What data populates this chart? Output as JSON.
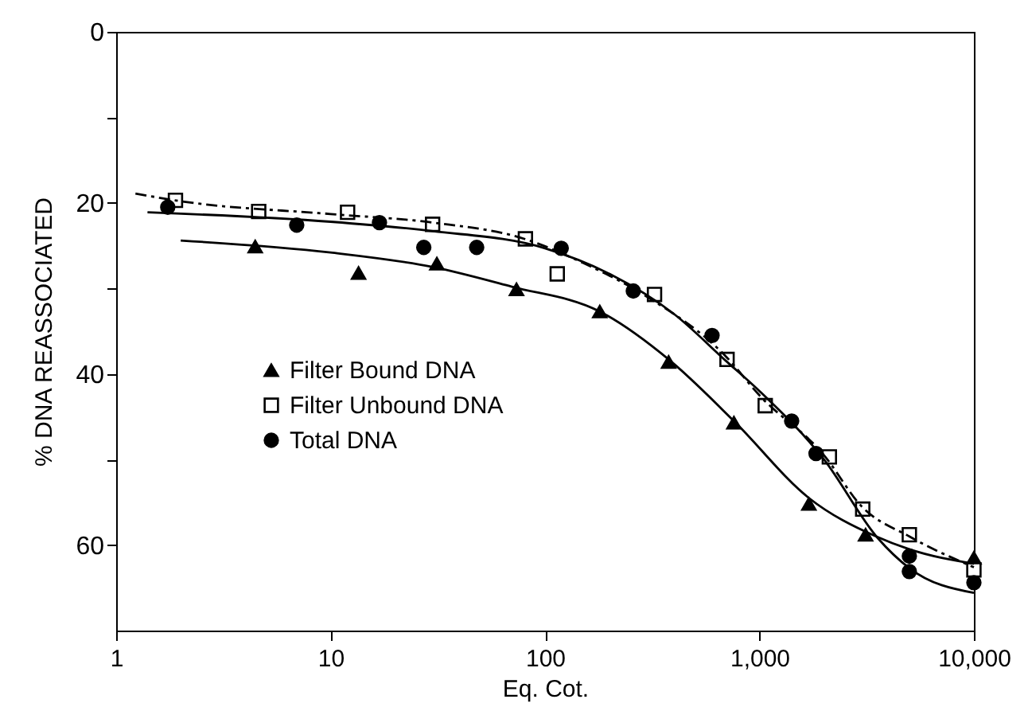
{
  "chart_data": {
    "type": "scatter",
    "xlabel": "Eq. Cot.",
    "ylabel": "% DNA REASSOCIATED",
    "log": "x",
    "grid": false,
    "legend": "left",
    "xlim": [
      1,
      10000
    ],
    "xticks": [
      1,
      10,
      100,
      {
        "value": 1000,
        "label": "1,000"
      },
      {
        "value": 10000,
        "label": "10,000"
      }
    ],
    "ylim": [
      70,
      0
    ],
    "yticks": [
      0,
      {
        "value": 10,
        "label": null
      },
      20,
      {
        "value": 30,
        "label": null
      },
      40,
      {
        "value": 50,
        "label": null
      },
      60
    ],
    "series": [
      {
        "name": "Filter Bound DNA",
        "marker": "triangle",
        "color": "#000000",
        "x": [
          4.45,
          13.5,
          31.3,
          73.6,
          180,
          377,
          760,
          1700,
          3125,
          10000
        ],
        "values": [
          25.1,
          28.2,
          27.1,
          30.1,
          32.7,
          38.6,
          45.7,
          55.2,
          58.8,
          61.5
        ]
      },
      {
        "name": "Filter Unbound DNA",
        "marker": "square",
        "color": "#000000",
        "x": [
          1.89,
          4.62,
          12,
          29.9,
          81,
          114,
          324,
          706,
          1064,
          2118,
          3030,
          5000,
          10000
        ],
        "values": [
          19.7,
          21,
          21.1,
          22.5,
          24.2,
          28.3,
          30.7,
          38.3,
          43.7,
          49.7,
          55.8,
          58.8,
          62.9
        ]
      },
      {
        "name": "Total DNA",
        "marker": "circle",
        "color": "#000000",
        "x": [
          1.74,
          6.95,
          16.9,
          27.2,
          48,
          119,
          258,
          601,
          1413,
          1836,
          5000,
          5000,
          10000
        ],
        "values": [
          20.5,
          22.6,
          22.3,
          25.2,
          25.2,
          25.3,
          30.3,
          35.5,
          45.5,
          49.3,
          61.3,
          63.1,
          64.4
        ]
      },
      {
        "type": "line",
        "line_style": "solid",
        "color": "#000000",
        "x": [
          2,
          10,
          30,
          70,
          180,
          377,
          760,
          1700,
          3500,
          5000,
          10000
        ],
        "values": [
          24.4,
          25.8,
          27.5,
          29.8,
          32.7,
          38.3,
          45.5,
          54.5,
          59,
          60.5,
          62.2
        ]
      },
      {
        "type": "line",
        "line_style": "dashed",
        "color": "#000000",
        "x": [
          1.23,
          2,
          10,
          30,
          80,
          150,
          300,
          700,
          1000,
          2000,
          3000,
          5000,
          10000
        ],
        "values": [
          18.9,
          19.8,
          21.3,
          22.3,
          24.2,
          27,
          31,
          38,
          42.5,
          49.5,
          55.5,
          59,
          62.6
        ]
      },
      {
        "type": "line",
        "line_style": "solid",
        "color": "#000000",
        "x": [
          1.4,
          10,
          30,
          100,
          200,
          400,
          700,
          1000,
          2000,
          3565,
          5000,
          10000
        ],
        "values": [
          21.1,
          22.2,
          23.3,
          25.3,
          28.3,
          33,
          38.5,
          42,
          50,
          59.2,
          62.7,
          65.6
        ]
      }
    ]
  }
}
